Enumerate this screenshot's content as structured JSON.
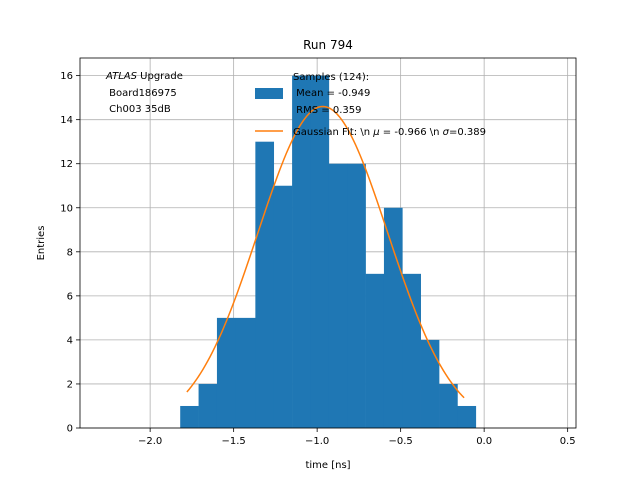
{
  "chart_data": {
    "type": "bar",
    "title": "Run 794",
    "xlabel": "time [ns]",
    "ylabel": "Entries",
    "xlim": [
      -2.42,
      0.55
    ],
    "ylim": [
      0,
      16.8
    ],
    "xticks": [
      -2.0,
      -1.5,
      -1.0,
      -0.5,
      0.0,
      0.5
    ],
    "xtick_labels": [
      "−2.0",
      "−1.5",
      "−1.0",
      "−0.5",
      "0.0",
      "0.5"
    ],
    "yticks": [
      0,
      2,
      4,
      6,
      8,
      10,
      12,
      14,
      16
    ],
    "ytick_labels": [
      "0",
      "2",
      "4",
      "6",
      "8",
      "10",
      "12",
      "14",
      "16"
    ],
    "grid": true,
    "bin_edges": [
      -1.82,
      -1.71,
      -1.6,
      -1.49,
      -1.37,
      -1.26,
      -1.15,
      -1.04,
      -0.93,
      -0.82,
      -0.71,
      -0.6,
      -0.49,
      -0.38,
      -0.27,
      -0.16,
      -0.05
    ],
    "counts": [
      1,
      2,
      5,
      5,
      13,
      11,
      16,
      16,
      12,
      12,
      7,
      10,
      7,
      4,
      2,
      1
    ],
    "fit": {
      "mu": -0.966,
      "sigma": 0.389,
      "amplitude": 14.6,
      "x_range": [
        -1.78,
        -0.12
      ]
    },
    "annotation": {
      "italic": "ATLAS",
      "line1_rest": " Upgrade",
      "line2": " Board186975",
      "line3": " Ch003 35dB"
    },
    "legend": {
      "placement": "top-right",
      "hist_line1": "Samples (124):",
      "hist_line2": " Mean = -0.949",
      "hist_line3": " RMS = 0.359",
      "fit_prefix": "Gaussian Fit: \\n ",
      "fit_mu_symbol": "μ",
      "fit_mid": " = -0.966 \\n ",
      "fit_sigma_symbol": "σ",
      "fit_suffix": "=0.389"
    },
    "colors": {
      "hist": "#1f77b4",
      "fit": "#ff7f0e",
      "grid": "#b0b0b0"
    }
  }
}
